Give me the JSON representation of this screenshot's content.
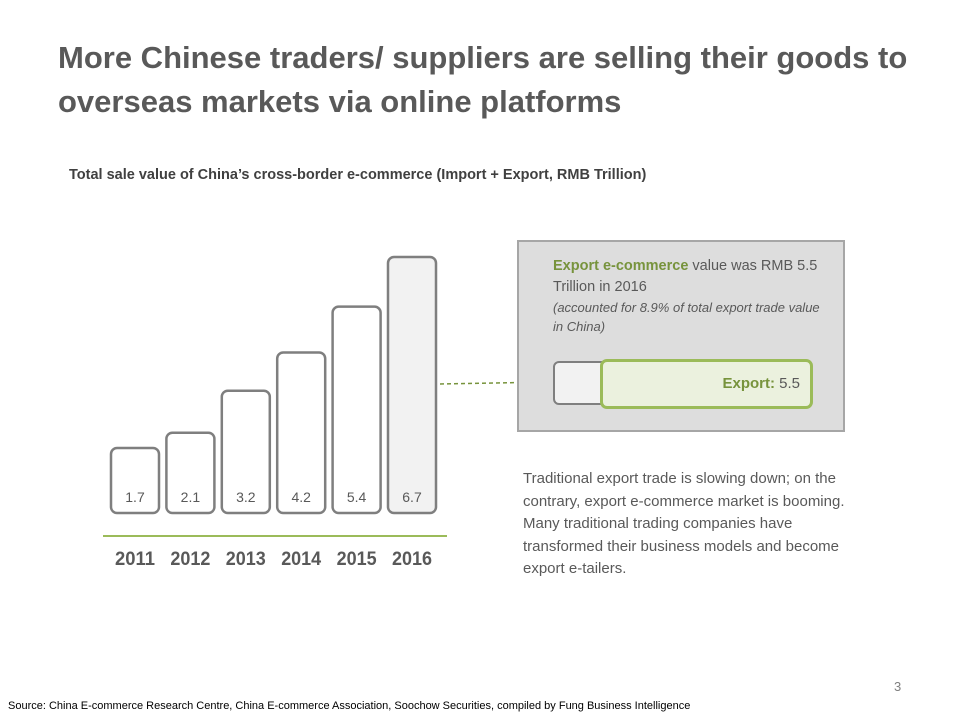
{
  "title": "More Chinese traders/ suppliers are selling their goods to overseas markets via online platforms",
  "subtitle": "Total sale value of China’s cross-border e-commerce (Import + Export, RMB Trillion)",
  "chart_data": {
    "type": "bar",
    "categories": [
      "2011",
      "2012",
      "2013",
      "2014",
      "2015",
      "2016"
    ],
    "values": [
      1.7,
      2.1,
      3.2,
      4.2,
      5.4,
      6.7
    ],
    "value_labels": [
      "1.7",
      "2.1",
      "3.2",
      "4.2",
      "5.4",
      "6.7"
    ],
    "title": "Total sale value of China’s cross-border e-commerce (Import + Export, RMB Trillion)",
    "ylim": [
      0,
      6.7
    ],
    "grid": false,
    "colors": {
      "bar_fill": "#ffffff",
      "bar_fill_highlight": "#f2f2f2",
      "bar_stroke": "#7f7f7f",
      "axis": "#9bbb59"
    }
  },
  "callout": {
    "highlight": "Export e-commerce",
    "text_1": " value was RMB 5.5 Trillion in 2016",
    "note": "(accounted for 8.9% of total export trade value in China)",
    "bar_label": "Export:",
    "bar_value": "5.5",
    "export_value": 5.5,
    "total_value": 6.7
  },
  "paragraph": "Traditional export trade is slowing down; on the contrary, export e-commerce market is booming. Many traditional trading companies have transformed their business models and become export e-tailers.",
  "page_number": "3",
  "source": "Source: China E-commerce Research Centre, China E-commerce Association, Soochow Securities, compiled by Fung Business Intelligence",
  "colors": {
    "accent_green": "#77933c",
    "light_green": "#ebf1de",
    "border_green": "#9bbb59",
    "text_gray": "#595959"
  }
}
